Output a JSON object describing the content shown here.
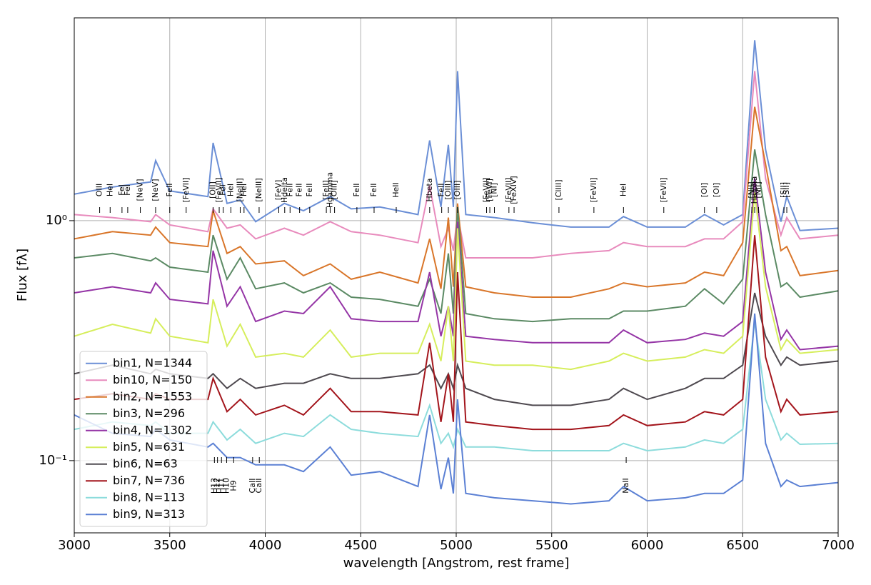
{
  "chart_data": {
    "type": "line",
    "xlabel": "wavelength [Angstrom, rest frame]",
    "ylabel": "Flux [fλ]",
    "log_y": true,
    "grid": true,
    "legend": "lower left",
    "xlim": [
      3000,
      7000
    ],
    "xticks": [
      3000,
      3500,
      4000,
      4500,
      5000,
      5500,
      6000,
      6500,
      7000
    ],
    "ylim": [
      0.05,
      7
    ],
    "yticks": [
      {
        "value": 0.1,
        "label": "10⁻¹"
      },
      {
        "value": 1,
        "label": "10⁰"
      }
    ],
    "x": [
      3000,
      3200,
      3400,
      3426,
      3500,
      3700,
      3727,
      3800,
      3869,
      3950,
      4100,
      4200,
      4340,
      4450,
      4600,
      4800,
      4861,
      4920,
      4959,
      4985,
      5007,
      5050,
      5200,
      5400,
      5600,
      5800,
      5876,
      6000,
      6200,
      6300,
      6400,
      6500,
      6563,
      6620,
      6700,
      6731,
      6800,
      7000
    ],
    "series": [
      {
        "name": "bin1, N=1344",
        "color": "#6b8fd6",
        "values": [
          1.29,
          1.38,
          1.45,
          1.78,
          1.33,
          1.26,
          2.11,
          1.18,
          1.22,
          0.99,
          1.18,
          1.1,
          1.26,
          1.12,
          1.14,
          1.06,
          2.16,
          1.14,
          2.07,
          1.14,
          4.2,
          1.06,
          1.03,
          0.98,
          0.94,
          0.94,
          1.04,
          0.94,
          0.94,
          1.06,
          0.96,
          1.06,
          5.65,
          1.98,
          0.99,
          1.26,
          0.91,
          0.93
        ]
      },
      {
        "name": "bin10, N=150",
        "color": "#e88bbd",
        "values": [
          1.06,
          1.03,
          0.99,
          1.06,
          0.96,
          0.9,
          1.12,
          0.93,
          0.96,
          0.84,
          0.93,
          0.87,
          0.99,
          0.9,
          0.87,
          0.81,
          1.4,
          0.78,
          0.93,
          0.75,
          1.06,
          0.7,
          0.7,
          0.7,
          0.73,
          0.75,
          0.81,
          0.78,
          0.78,
          0.84,
          0.84,
          0.99,
          4.2,
          1.5,
          0.87,
          1.03,
          0.84,
          0.87
        ]
      },
      {
        "name": "bin2, N=1553",
        "color": "#d9762a",
        "values": [
          0.84,
          0.9,
          0.87,
          0.94,
          0.81,
          0.78,
          1.1,
          0.73,
          0.78,
          0.66,
          0.68,
          0.59,
          0.66,
          0.57,
          0.61,
          0.55,
          0.84,
          0.52,
          1.03,
          0.53,
          1.18,
          0.53,
          0.5,
          0.48,
          0.48,
          0.52,
          0.55,
          0.53,
          0.55,
          0.61,
          0.59,
          0.81,
          2.98,
          1.72,
          0.75,
          0.78,
          0.59,
          0.62
        ]
      },
      {
        "name": "bin3, N=296",
        "color": "#5b8a64",
        "values": [
          0.7,
          0.73,
          0.68,
          0.7,
          0.64,
          0.61,
          0.87,
          0.57,
          0.7,
          0.52,
          0.55,
          0.5,
          0.55,
          0.48,
          0.47,
          0.44,
          0.57,
          0.41,
          0.73,
          0.41,
          1.14,
          0.41,
          0.39,
          0.38,
          0.39,
          0.39,
          0.42,
          0.42,
          0.44,
          0.52,
          0.45,
          0.57,
          1.98,
          1.06,
          0.53,
          0.55,
          0.48,
          0.51
        ]
      },
      {
        "name": "bin4, N=1302",
        "color": "#9535a6",
        "values": [
          0.5,
          0.53,
          0.5,
          0.55,
          0.47,
          0.45,
          0.75,
          0.44,
          0.53,
          0.38,
          0.42,
          0.41,
          0.53,
          0.39,
          0.38,
          0.38,
          0.61,
          0.33,
          0.44,
          0.33,
          0.99,
          0.33,
          0.32,
          0.31,
          0.31,
          0.31,
          0.35,
          0.31,
          0.32,
          0.34,
          0.33,
          0.38,
          1.5,
          0.61,
          0.32,
          0.35,
          0.29,
          0.3
        ]
      },
      {
        "name": "bin5, N=631",
        "color": "#d6ee5c",
        "values": [
          0.33,
          0.37,
          0.34,
          0.39,
          0.33,
          0.31,
          0.47,
          0.3,
          0.37,
          0.27,
          0.28,
          0.27,
          0.35,
          0.27,
          0.28,
          0.28,
          0.37,
          0.26,
          0.44,
          0.26,
          0.93,
          0.26,
          0.25,
          0.25,
          0.24,
          0.26,
          0.28,
          0.26,
          0.27,
          0.29,
          0.28,
          0.33,
          1.31,
          0.53,
          0.29,
          0.32,
          0.28,
          0.29
        ]
      },
      {
        "name": "bin6, N=63",
        "color": "#4f4a50",
        "values": [
          0.23,
          0.25,
          0.23,
          0.24,
          0.23,
          0.22,
          0.23,
          0.2,
          0.22,
          0.2,
          0.21,
          0.21,
          0.23,
          0.22,
          0.22,
          0.23,
          0.25,
          0.2,
          0.23,
          0.2,
          0.25,
          0.2,
          0.18,
          0.17,
          0.17,
          0.18,
          0.2,
          0.18,
          0.2,
          0.22,
          0.22,
          0.25,
          0.5,
          0.33,
          0.25,
          0.27,
          0.25,
          0.26
        ]
      },
      {
        "name": "bin7, N=736",
        "color": "#a3151c",
        "values": [
          0.18,
          0.19,
          0.18,
          0.19,
          0.18,
          0.18,
          0.22,
          0.16,
          0.18,
          0.155,
          0.17,
          0.155,
          0.2,
          0.16,
          0.16,
          0.155,
          0.31,
          0.145,
          0.23,
          0.145,
          0.61,
          0.145,
          0.14,
          0.135,
          0.135,
          0.14,
          0.155,
          0.14,
          0.145,
          0.16,
          0.155,
          0.18,
          0.87,
          0.27,
          0.16,
          0.18,
          0.155,
          0.16
        ]
      },
      {
        "name": "bin8, N=113",
        "color": "#8ddcdc",
        "values": [
          0.135,
          0.145,
          0.14,
          0.145,
          0.13,
          0.13,
          0.145,
          0.122,
          0.135,
          0.118,
          0.13,
          0.126,
          0.155,
          0.135,
          0.13,
          0.126,
          0.17,
          0.118,
          0.13,
          0.114,
          0.135,
          0.114,
          0.114,
          0.11,
          0.11,
          0.11,
          0.118,
          0.11,
          0.114,
          0.122,
          0.118,
          0.135,
          0.38,
          0.18,
          0.122,
          0.13,
          0.117,
          0.118
        ]
      },
      {
        "name": "bin9, N=313",
        "color": "#5b80d4",
        "values": [
          0.155,
          0.13,
          0.126,
          0.135,
          0.122,
          0.114,
          0.118,
          0.103,
          0.103,
          0.096,
          0.096,
          0.09,
          0.114,
          0.087,
          0.09,
          0.078,
          0.155,
          0.076,
          0.103,
          0.073,
          0.18,
          0.073,
          0.07,
          0.068,
          0.066,
          0.068,
          0.078,
          0.068,
          0.07,
          0.073,
          0.073,
          0.083,
          0.41,
          0.118,
          0.078,
          0.083,
          0.078,
          0.081
        ]
      }
    ],
    "line_labels": [
      {
        "label": "OIII",
        "x": 3133
      },
      {
        "label": "HeI",
        "x": 3188
      },
      {
        "label": "FeI",
        "x": 3250
      },
      {
        "label": "FeI",
        "x": 3280
      },
      {
        "label": "[NeV]",
        "x": 3346
      },
      {
        "label": "[NeV]",
        "x": 3426
      },
      {
        "label": "FeII",
        "x": 3500
      },
      {
        "label": "[FeVII]",
        "x": 3586
      },
      {
        "label": "[OII]",
        "x": 3727
      },
      {
        "label": "[FeVII]",
        "x": 3759
      },
      {
        "label": "FeI",
        "x": 3780
      },
      {
        "label": "HeI",
        "x": 3820
      },
      {
        "label": "[NeIII]",
        "x": 3869
      },
      {
        "label": "HeI",
        "x": 3889
      },
      {
        "label": "[NeIII]",
        "x": 3968
      },
      {
        "label": "[FeV]",
        "x": 4071
      },
      {
        "label": "Hdelta",
        "x": 4102
      },
      {
        "label": "FeII",
        "x": 4130
      },
      {
        "label": "FeII",
        "x": 4180
      },
      {
        "label": "FeII",
        "x": 4233
      },
      {
        "label": "[FeII]",
        "x": 4320
      },
      {
        "label": "Hgamma",
        "x": 4340
      },
      {
        "label": "[OIII]",
        "x": 4363
      },
      {
        "label": "FeII",
        "x": 4480
      },
      {
        "label": "FeII",
        "x": 4570
      },
      {
        "label": "HeII",
        "x": 4686
      },
      {
        "label": "Hbeta",
        "x": 4861
      },
      {
        "label": "FeII",
        "x": 4924
      },
      {
        "label": "[OIII]",
        "x": 4959
      },
      {
        "label": "[OIII]",
        "x": 5007
      },
      {
        "label": "[FeVII]",
        "x": 5159
      },
      {
        "label": "[FeVI]",
        "x": 5176
      },
      {
        "label": "[NI]",
        "x": 5200
      },
      {
        "label": "[FeVII]",
        "x": 5276
      },
      {
        "label": "[FeXIV]",
        "x": 5303
      },
      {
        "label": "[ClIII]",
        "x": 5538
      },
      {
        "label": "[FeVII]",
        "x": 5721
      },
      {
        "label": "HeI",
        "x": 5876
      },
      {
        "label": "[FeVII]",
        "x": 6087
      },
      {
        "label": "[OI]",
        "x": 6300
      },
      {
        "label": "[OI]",
        "x": 6364
      },
      {
        "label": "[NII]",
        "x": 6548
      },
      {
        "label": "Halpha",
        "x": 6563
      },
      {
        "label": "[NII]",
        "x": 6583
      },
      {
        "label": "[SII]",
        "x": 6716
      },
      {
        "label": "[SII]",
        "x": 6731
      }
    ],
    "line_labels_bottom": [
      {
        "label": "H13",
        "x": 3734
      },
      {
        "label": "H12",
        "x": 3750
      },
      {
        "label": "H11",
        "x": 3771
      },
      {
        "label": "H10",
        "x": 3798
      },
      {
        "label": "H9",
        "x": 3835
      },
      {
        "label": "CaII",
        "x": 3934
      },
      {
        "label": "CaII",
        "x": 3969
      },
      {
        "label": "NaII",
        "x": 5890
      }
    ]
  }
}
